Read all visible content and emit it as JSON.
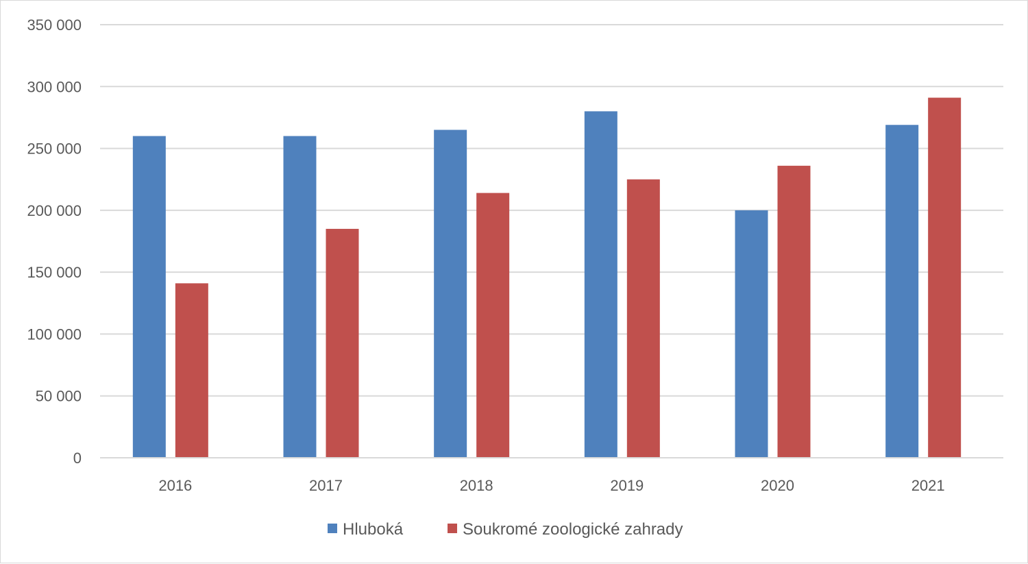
{
  "chart_data": {
    "type": "bar",
    "title": "",
    "xlabel": "",
    "ylabel": "",
    "categories": [
      "2016",
      "2017",
      "2018",
      "2019",
      "2020",
      "2021"
    ],
    "series": [
      {
        "name": "Hluboká",
        "color": "#4f81bd",
        "values": [
          260000,
          260000,
          265000,
          280000,
          200000,
          269000
        ]
      },
      {
        "name": "Soukromé zoologické zahrady",
        "color": "#c0504d",
        "values": [
          141000,
          185000,
          214000,
          225000,
          236000,
          291000
        ]
      }
    ],
    "ylim": [
      0,
      350000
    ],
    "yticks": [
      0,
      50000,
      100000,
      150000,
      200000,
      250000,
      300000,
      350000
    ],
    "ytick_labels": [
      "0",
      "50 000",
      "100 000",
      "150 000",
      "200 000",
      "250 000",
      "300 000",
      "350 000"
    ],
    "grid": true,
    "legend_position": "bottom"
  }
}
